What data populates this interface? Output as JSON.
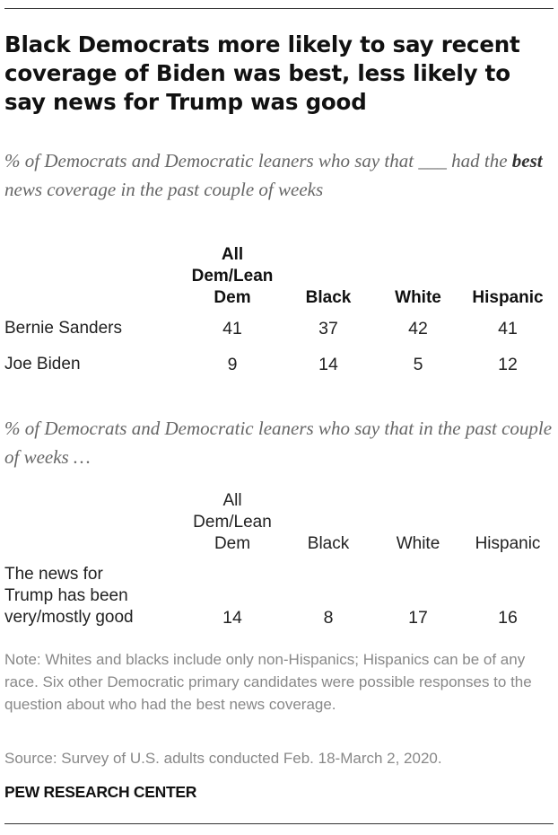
{
  "title": "Black Democrats more likely to say recent coverage of Biden was best, less likely to say news for Trump was good",
  "subtitle1": {
    "part1": "% of Democrats and Democratic leaners who say that ___ had the ",
    "emph": "best",
    "part2": " news coverage in the past couple of weeks"
  },
  "subtitle2": "% of Democrats and Democratic leaners who say that in the past couple of weeks …",
  "chart_data": [
    {
      "type": "table",
      "title": "% of Democrats and Democratic leaners who say that ___ had the best news coverage in the past couple of weeks",
      "columns": [
        "All Dem/Lean Dem",
        "Black",
        "White",
        "Hispanic"
      ],
      "column_lines": [
        [
          "All",
          "Dem/Lean",
          "Dem"
        ],
        [
          "Black"
        ],
        [
          "White"
        ],
        [
          "Hispanic"
        ]
      ],
      "rows": [
        {
          "label": "Bernie Sanders",
          "values": [
            41,
            37,
            42,
            41
          ]
        },
        {
          "label": "Joe Biden",
          "values": [
            9,
            14,
            5,
            12
          ]
        }
      ]
    },
    {
      "type": "table",
      "title": "% of Democrats and Democratic leaners who say that in the past couple of weeks …",
      "columns": [
        "All Dem/Lean Dem",
        "Black",
        "White",
        "Hispanic"
      ],
      "column_lines": [
        [
          "All",
          "Dem/Lean",
          "Dem"
        ],
        [
          "Black"
        ],
        [
          "White"
        ],
        [
          "Hispanic"
        ]
      ],
      "rows": [
        {
          "label": "The news for Trump has been very/mostly good",
          "label_lines": [
            "The news for",
            "Trump has been",
            "very/mostly good"
          ],
          "values": [
            14,
            8,
            17,
            16
          ]
        }
      ]
    }
  ],
  "note": "Note: Whites and blacks include only non-Hispanics; Hispanics can be of any race. Six other Democratic primary candidates were possible responses to the question about who had the best news coverage.",
  "source": "Source: Survey of U.S. adults conducted Feb. 18-March 2, 2020.",
  "brand": "PEW RESEARCH CENTER"
}
